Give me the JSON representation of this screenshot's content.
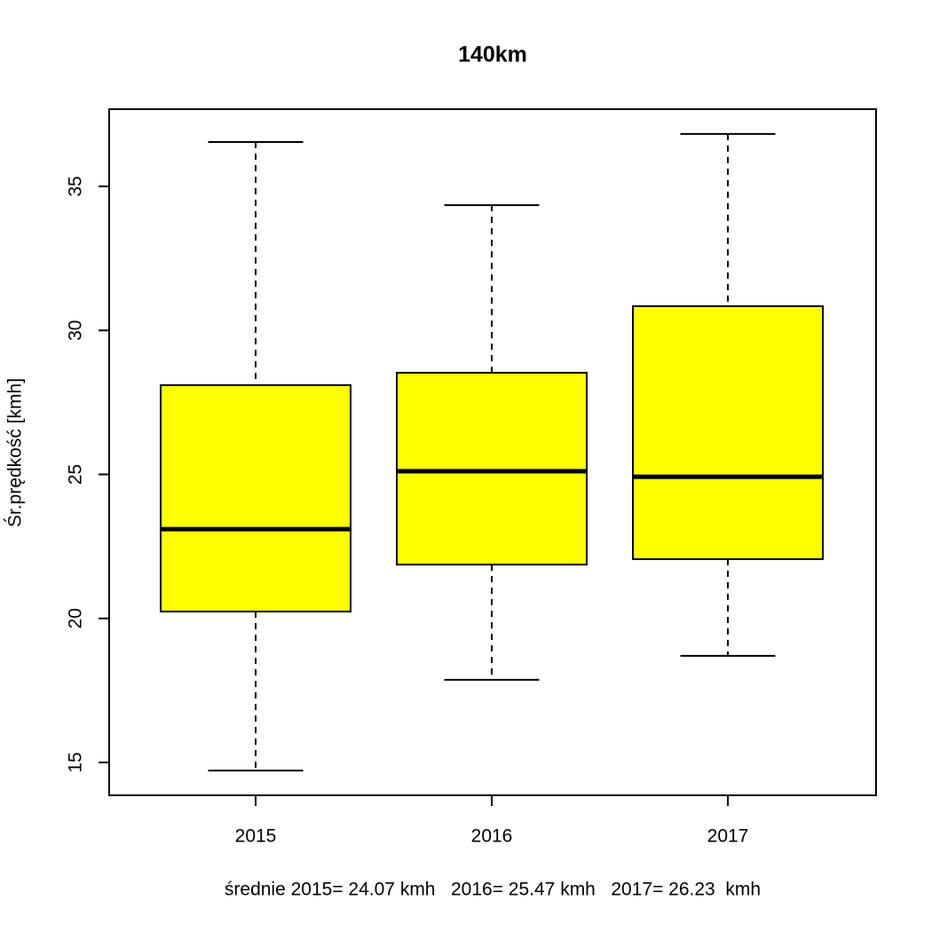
{
  "chart_data": {
    "type": "box",
    "title": "140km",
    "y_label": "Śr.prędkość [kmh]",
    "x_label": "średnie 2015= 24.07 kmh   2016= 25.47 kmh   2017= 26.23  kmh",
    "categories": [
      "2015",
      "2016",
      "2017"
    ],
    "color": "#ffff00",
    "boxes": [
      {
        "min": 14.72,
        "q1": 20.24,
        "median": 23.1,
        "q3": 28.1,
        "max": 36.54
      },
      {
        "min": 17.87,
        "q1": 21.87,
        "median": 25.11,
        "q3": 28.53,
        "max": 34.35
      },
      {
        "min": 18.7,
        "q1": 22.06,
        "median": 24.92,
        "q3": 30.84,
        "max": 36.82
      }
    ],
    "ylim": [
      13.86,
      37.68
    ],
    "yticks": [
      15,
      20,
      25,
      30,
      35
    ]
  }
}
